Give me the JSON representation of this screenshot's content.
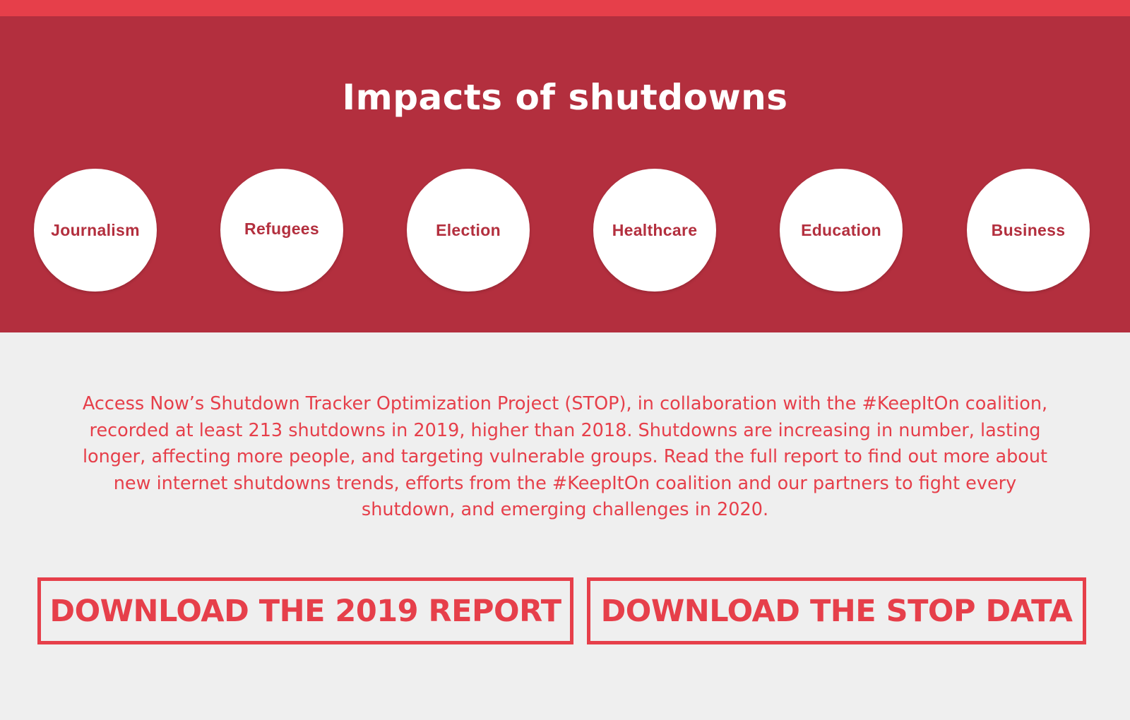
{
  "hero": {
    "title": "Impacts of shutdowns",
    "topics": [
      {
        "label": "Journalism"
      },
      {
        "label": "Refugees"
      },
      {
        "label": "Election"
      },
      {
        "label": "Healthcare"
      },
      {
        "label": "Education"
      },
      {
        "label": "Business"
      }
    ]
  },
  "description": "Access Now’s Shutdown Tracker Optimization Project (STOP), in collaboration with the #KeepItOn coalition, recorded at least 213 shutdowns in 2019, higher than 2018. Shutdowns are increasing in number, lasting longer, affecting more people, and targeting vulnerable groups. Read the full report to find out more about new internet shutdowns trends, efforts from the #KeepItOn coalition and our partners to fight every shutdown, and emerging challenges in 2020.",
  "buttons": {
    "report_label": "DOWNLOAD THE 2019 REPORT",
    "data_label": "DOWNLOAD THE STOP DATA"
  },
  "colors": {
    "accent": "#e63f4a",
    "hero_bg": "#b32f3e",
    "page_bg": "#efefef"
  }
}
